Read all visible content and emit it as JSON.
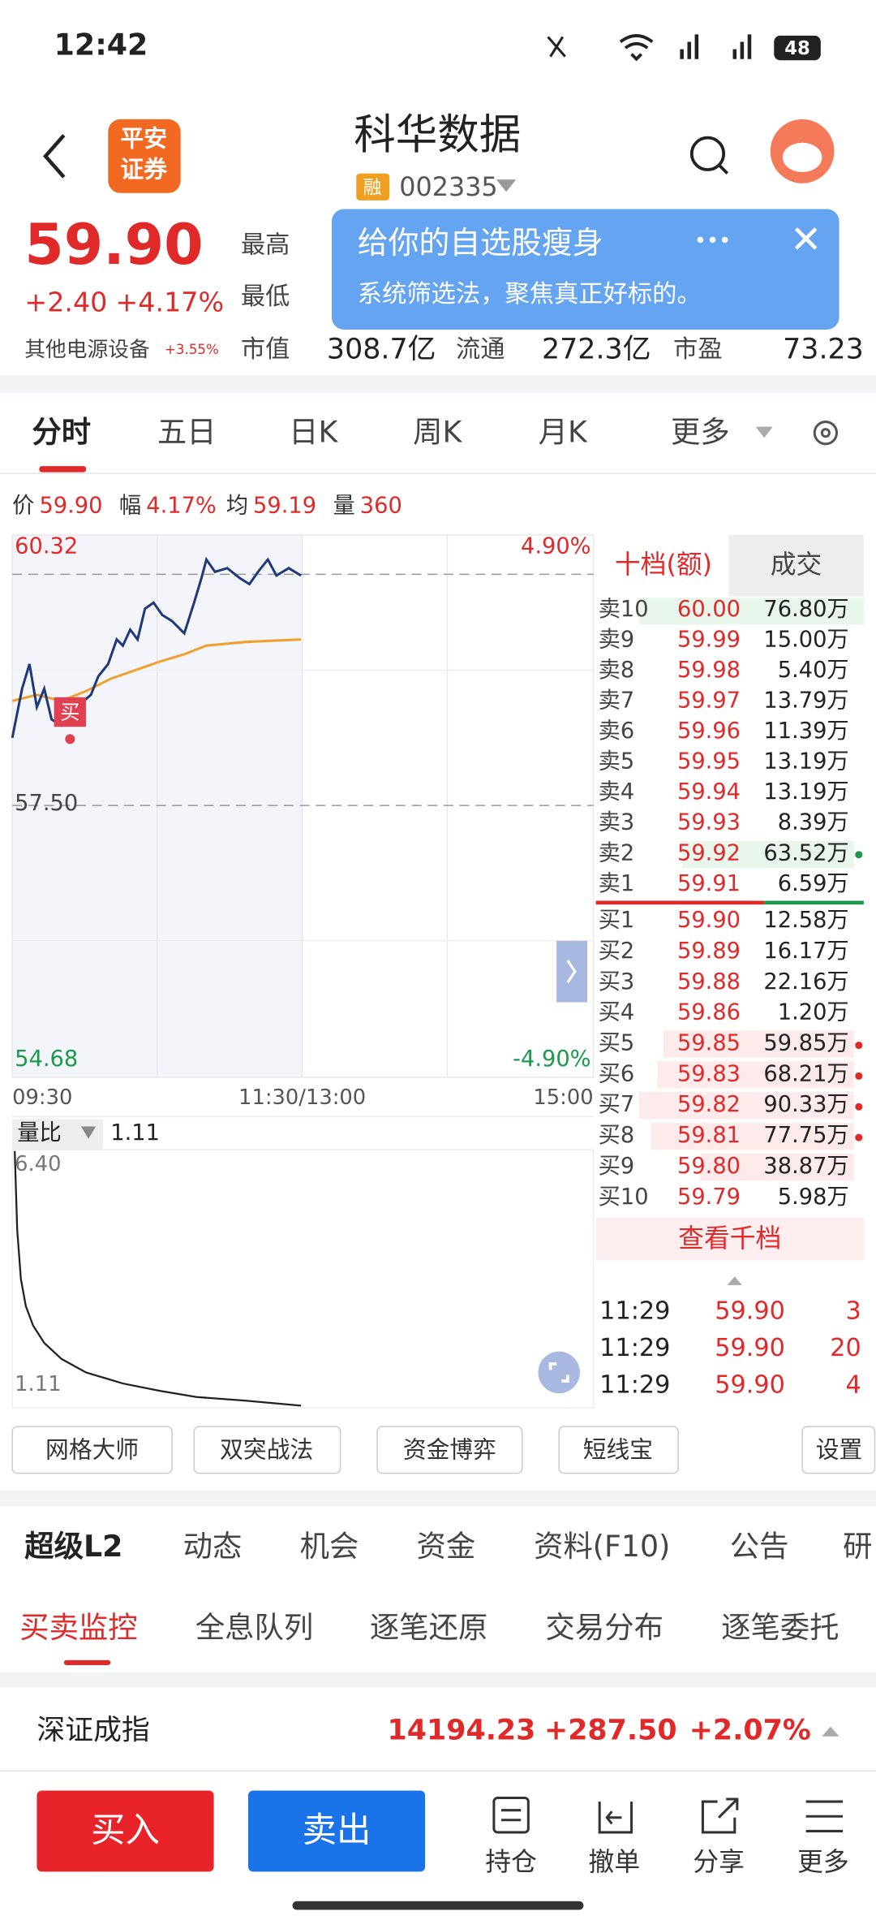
{
  "status_bar": {
    "time": "12:42",
    "battery": "48"
  },
  "header": {
    "logo": [
      "平安",
      "证券"
    ],
    "title": "科华数据",
    "badge": "融",
    "code": "002335"
  },
  "quote": {
    "price": "59.90",
    "change": "+2.40",
    "change_pct": "+4.17%",
    "sector": "其他电源设备",
    "sector_change": "+3.55%",
    "labels": [
      "最高",
      "最低",
      "市值",
      "流通",
      "市盈"
    ],
    "market_cap": "308.7亿",
    "float_cap": "272.3亿",
    "pe": "73.23"
  },
  "popup": {
    "title": "给你的自选股瘦身",
    "text": "系统筛选法，聚焦真正好标的。"
  },
  "chart_tabs": [
    "分时",
    "五日",
    "日K",
    "周K",
    "月K",
    "更多"
  ],
  "info_row": [
    "价",
    "59.90",
    "幅",
    "4.17%",
    "均",
    "59.19",
    "量",
    "360"
  ],
  "chart_axis": {
    "high": "60.32",
    "high_pct": "4.90%",
    "mid": "57.50",
    "low": "54.68",
    "low_pct": "-4.90%",
    "times": [
      "09:30",
      "11:30/13:00",
      "15:00"
    ],
    "buy_marker": "买"
  },
  "volume_ratio": {
    "label": "量比",
    "value": "1.11",
    "max": "6.40",
    "min": "1.11"
  },
  "order_book": {
    "tabs": [
      "十档(额)",
      "成交"
    ],
    "asks": [
      {
        "label": "卖10",
        "price": "60.00",
        "amount": "76.80万"
      },
      {
        "label": "卖9",
        "price": "59.99",
        "amount": "15.00万"
      },
      {
        "label": "卖8",
        "price": "59.98",
        "amount": "5.40万"
      },
      {
        "label": "卖7",
        "price": "59.97",
        "amount": "13.79万"
      },
      {
        "label": "卖6",
        "price": "59.96",
        "amount": "11.39万"
      },
      {
        "label": "卖5",
        "price": "59.95",
        "amount": "13.19万"
      },
      {
        "label": "卖4",
        "price": "59.94",
        "amount": "13.19万"
      },
      {
        "label": "卖3",
        "price": "59.93",
        "amount": "8.39万"
      },
      {
        "label": "卖2",
        "price": "59.92",
        "amount": "63.52万"
      },
      {
        "label": "卖1",
        "price": "59.91",
        "amount": "6.59万"
      }
    ],
    "bids": [
      {
        "label": "买1",
        "price": "59.90",
        "amount": "12.58万"
      },
      {
        "label": "买2",
        "price": "59.89",
        "amount": "16.17万"
      },
      {
        "label": "买3",
        "price": "59.88",
        "amount": "22.16万"
      },
      {
        "label": "买4",
        "price": "59.86",
        "amount": "1.20万"
      },
      {
        "label": "买5",
        "price": "59.85",
        "amount": "59.85万"
      },
      {
        "label": "买6",
        "price": "59.83",
        "amount": "68.21万"
      },
      {
        "label": "买7",
        "price": "59.82",
        "amount": "90.33万"
      },
      {
        "label": "买8",
        "price": "59.81",
        "amount": "77.75万"
      },
      {
        "label": "买9",
        "price": "59.80",
        "amount": "38.87万"
      },
      {
        "label": "买10",
        "price": "59.79",
        "amount": "5.98万"
      }
    ],
    "more": "查看千档",
    "trades": [
      [
        "11:29",
        "59.90",
        "3"
      ],
      [
        "11:29",
        "59.90",
        "20"
      ],
      [
        "11:29",
        "59.90",
        "4"
      ]
    ]
  },
  "tools": [
    "网格大师",
    "双突战法",
    "资金博弈",
    "短线宝",
    "设置"
  ],
  "section_tabs": [
    "超级L2",
    "动态",
    "机会",
    "资金",
    "资料(F10)",
    "公告",
    "研"
  ],
  "sub_tabs": [
    "买卖监控",
    "全息队列",
    "逐笔还原",
    "交易分布",
    "逐笔委托"
  ],
  "index": {
    "name": "深证成指",
    "value": "14194.23",
    "change": "+287.50",
    "change_pct": "+2.07%"
  },
  "actions": {
    "buy": "买入",
    "sell": "卖出",
    "menu": [
      "持仓",
      "撤单",
      "分享",
      "更多"
    ]
  }
}
